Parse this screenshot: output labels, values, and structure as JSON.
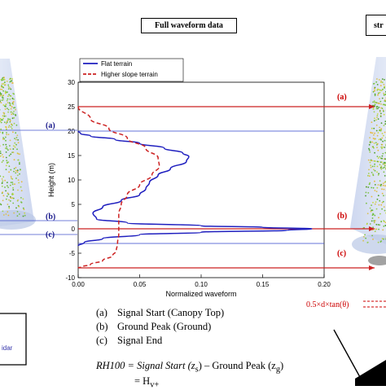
{
  "figure": {
    "center_title": "Full waveform data",
    "right_title_fragment": "str",
    "lidar_label_fragment": "idar",
    "marker_letters": {
      "a": "(a)",
      "b": "(b)",
      "c": "(c)"
    },
    "formula_right": "0.5×d×tan(θ)",
    "legend_list": [
      {
        "key": "(a)",
        "text": "Signal Start (Canopy Top)"
      },
      {
        "key": "(b)",
        "text": "Ground Peak (Ground)"
      },
      {
        "key": "(c)",
        "text": "Signal End"
      }
    ],
    "equation_line1": "RH100 = Signal Start (z",
    "equation_sub_s": "s",
    "equation_mid": ") – Ground Peak (z",
    "equation_sub_g": "g",
    "equation_end": ")",
    "equation_line2": "= H",
    "equation_line2_sub": "v+"
  },
  "chart_data": {
    "type": "line",
    "xlabel": "Normalized waveform",
    "ylabel": "Height (m)",
    "xlim": [
      0.0,
      0.2
    ],
    "ylim": [
      -10,
      30
    ],
    "x_ticks": [
      "0.00",
      "0.05",
      "0.10",
      "0.15",
      "0.20"
    ],
    "y_ticks": [
      "-10",
      "-5",
      "0",
      "5",
      "10",
      "15",
      "20",
      "25",
      "30"
    ],
    "grid": false,
    "legend_placement": "top-left",
    "series": [
      {
        "name": "Flat terrain",
        "color": "#1f1fbf",
        "style": "solid",
        "x": [
          0.0,
          0.002,
          0.01,
          0.03,
          0.05,
          0.07,
          0.085,
          0.09,
          0.088,
          0.075,
          0.065,
          0.058,
          0.055,
          0.05,
          0.035,
          0.02,
          0.012,
          0.015,
          0.04,
          0.1,
          0.15,
          0.19,
          0.17,
          0.1,
          0.05,
          0.02,
          0.005,
          0.0
        ],
        "y": [
          20,
          19.5,
          19,
          18.3,
          17.5,
          16.5,
          15.5,
          14.8,
          13.8,
          12.3,
          11,
          9.5,
          8.2,
          7,
          5.8,
          4.5,
          3.2,
          2,
          1.2,
          0.6,
          0.3,
          0.0,
          -0.3,
          -0.7,
          -1.2,
          -2,
          -2.8,
          -3.5
        ]
      },
      {
        "name": "Higher slope terrain",
        "color": "#cc2222",
        "style": "dashed",
        "x": [
          0.0,
          0.01,
          0.025,
          0.04,
          0.055,
          0.065,
          0.066,
          0.06,
          0.05,
          0.04,
          0.035,
          0.033,
          0.033,
          0.033,
          0.032,
          0.031,
          0.028,
          0.02,
          0.01,
          0.003,
          0.0
        ],
        "y": [
          25,
          22.5,
          20.5,
          18.5,
          16.5,
          14.5,
          12.8,
          11,
          9,
          7,
          5,
          3,
          1,
          -1,
          -3,
          -4.5,
          -5.5,
          -6.5,
          -7.3,
          -7.8,
          -8
        ]
      }
    ],
    "annotations": [
      {
        "label": "(a)",
        "y": 25
      },
      {
        "label": "(b)",
        "y": 0
      },
      {
        "label": "(c)",
        "y": -8
      }
    ]
  }
}
